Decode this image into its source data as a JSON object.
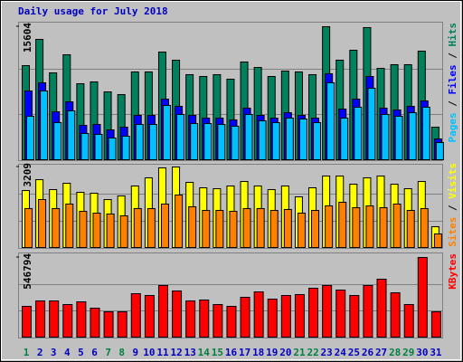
{
  "chart_data": {
    "type": "bar",
    "title": "Daily usage for July 2018",
    "categories": [
      "1",
      "2",
      "3",
      "4",
      "5",
      "6",
      "7",
      "8",
      "9",
      "10",
      "11",
      "12",
      "13",
      "14",
      "15",
      "16",
      "17",
      "18",
      "19",
      "20",
      "21",
      "22",
      "23",
      "24",
      "25",
      "26",
      "27",
      "28",
      "29",
      "30",
      "31"
    ],
    "category_colors": [
      "#008040",
      "#0000c0",
      "#0000c0",
      "#0000c0",
      "#0000c0",
      "#0000c0",
      "#008040",
      "#008040",
      "#0000c0",
      "#0000c0",
      "#0000c0",
      "#0000c0",
      "#0000c0",
      "#008040",
      "#008040",
      "#0000c0",
      "#0000c0",
      "#0000c0",
      "#0000c0",
      "#0000c0",
      "#008040",
      "#008040",
      "#0000c0",
      "#0000c0",
      "#0000c0",
      "#0000c0",
      "#0000c0",
      "#008040",
      "#008040",
      "#0000c0",
      "#0000c0"
    ],
    "legend_separator": " / ",
    "panels": [
      {
        "ylim": [
          0,
          15604
        ],
        "yticks": [
          15604
        ],
        "series": [
          {
            "name": "Hits",
            "color": "#00805c",
            "values": [
              11040,
              14118,
              10190,
              12313,
              8917,
              9129,
              7961,
              7643,
              10297,
              10297,
              12632,
              11677,
              9978,
              9766,
              9978,
              9447,
              11464,
              10827,
              9766,
              10403,
              10297,
              9978,
              15604,
              11677,
              12844,
              15498,
              10721,
              11146,
              11146,
              12738,
              3821
            ]
          },
          {
            "name": "Files",
            "color": "#0000ff",
            "values": [
              8067,
              9023,
              5626,
              6794,
              4034,
              4140,
              3503,
              3821,
              5201,
              5201,
              7112,
              6263,
              5201,
              4883,
              4883,
              4671,
              6050,
              5201,
              4883,
              5520,
              5201,
              4883,
              10084,
              5944,
              7112,
              9766,
              6050,
              5838,
              6263,
              6900,
              2441
            ]
          },
          {
            "name": "Pages",
            "color": "#00c0ff",
            "values": [
              5095,
              8067,
              4352,
              5732,
              3078,
              2972,
              2548,
              2760,
              4140,
              4140,
              6369,
              5308,
              4246,
              4246,
              4140,
              3928,
              5308,
              4564,
              4352,
              4883,
              4777,
              4352,
              9023,
              4883,
              6157,
              8386,
              5308,
              5095,
              5520,
              6157,
              2017
            ]
          }
        ]
      },
      {
        "ylim": [
          0,
          3209
        ],
        "yticks": [
          3209
        ],
        "series": [
          {
            "name": "Visits",
            "color": "#ffff00",
            "values": [
              2272,
              2704,
              2308,
              2560,
              2200,
              2164,
              1911,
              2055,
              2452,
              2777,
              3173,
              3209,
              2596,
              2380,
              2344,
              2452,
              2632,
              2452,
              2308,
              2452,
              2019,
              2380,
              2849,
              2849,
              2524,
              2777,
              2849,
              2524,
              2344,
              2632,
              829
            ]
          },
          {
            "name": "Sites",
            "color": "#ff8000",
            "values": [
              1551,
              1911,
              1551,
              1731,
              1442,
              1370,
              1334,
              1262,
              1551,
              1551,
              1731,
              2091,
              1623,
              1478,
              1478,
              1442,
              1551,
              1551,
              1478,
              1515,
              1370,
              1478,
              1659,
              1803,
              1587,
              1659,
              1587,
              1731,
              1478,
              1551,
              541
            ]
          }
        ]
      },
      {
        "ylim": [
          0,
          546794
        ],
        "yticks": [
          546794
        ],
        "series": [
          {
            "name": "KBytes",
            "color": "#ff0000",
            "values": [
              211262,
              248544,
              248544,
              223690,
              242330,
              198835,
              173981,
              173981,
              298253,
              285826,
              354175,
              316894,
              248544,
              254758,
              223690,
              211262,
              273398,
              310680,
              260971,
              285826,
              292040,
              335534,
              354175,
              323107,
              285826,
              354175,
              397670,
              304466,
              223690,
              546794,
              173981
            ]
          }
        ]
      }
    ]
  }
}
